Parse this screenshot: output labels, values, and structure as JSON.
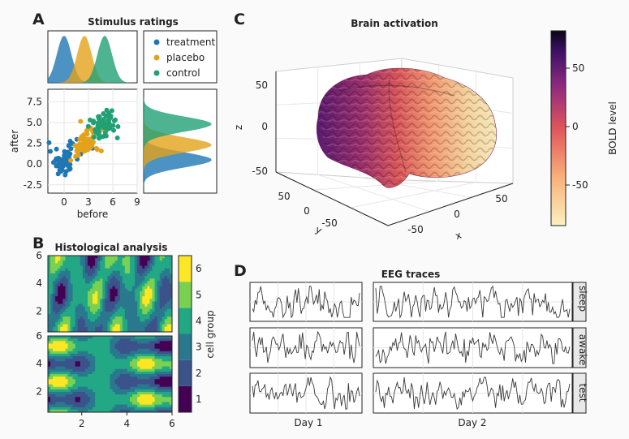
{
  "panels": {
    "A": {
      "letter": "A",
      "chart_data": {
        "type": "scatter",
        "title": "Stimulus ratings",
        "xlabel": "before",
        "ylabel": "after",
        "xlim": [
          -2,
          9
        ],
        "ylim": [
          -3.5,
          9
        ],
        "xticks": [
          0,
          3,
          6,
          9
        ],
        "yticks": [
          -2.5,
          0.0,
          2.5,
          5.0,
          7.5
        ],
        "ytick_labels": [
          "-2.5",
          "0.0",
          "2.5",
          "5.0",
          "7.5"
        ],
        "legend_position": "top-right",
        "series": [
          {
            "name": "treatment",
            "color": "#1f77b4",
            "x_center": 0,
            "y_center": 0.5,
            "x_spread": 0.9,
            "y_spread": 0.9
          },
          {
            "name": "placebo",
            "color": "#e3a21a",
            "x_center": 2.5,
            "y_center": 2.3,
            "x_spread": 0.9,
            "y_spread": 0.9
          },
          {
            "name": "control",
            "color": "#22a075",
            "x_center": 5,
            "y_center": 4.8,
            "x_spread": 0.9,
            "y_spread": 0.9
          }
        ]
      }
    },
    "B": {
      "letter": "B",
      "chart_data": {
        "type": "heatmap",
        "title": "Histological analysis",
        "xticks": [
          2,
          4,
          6
        ],
        "yticks": [
          2,
          4,
          6
        ],
        "colorbar_label": "cell group",
        "colorbar_ticks": [
          "1",
          "2",
          "3",
          "4",
          "5",
          "6"
        ],
        "levels": [
          "#440154",
          "#3b528b",
          "#2a788e",
          "#22a884",
          "#7ad151",
          "#fde725"
        ]
      }
    },
    "C": {
      "letter": "C",
      "chart_data": {
        "type": "surface",
        "title": "Brain activation",
        "xlabel": "x",
        "ylabel": "y",
        "zlabel": "z",
        "xticks": [
          "-50",
          "0",
          "50"
        ],
        "yticks": [
          "50",
          "0",
          "-50"
        ],
        "zticks": [
          "50",
          "0",
          "-50"
        ],
        "colorbar_label": "BOLD level",
        "colorbar_ticks": [
          "50",
          "0",
          "-50"
        ]
      }
    },
    "D": {
      "letter": "D",
      "chart_data": {
        "type": "line",
        "title": "EEG traces",
        "columns": [
          "Day 1",
          "Day 2"
        ],
        "rows": [
          "sleep",
          "awake",
          "test"
        ]
      }
    }
  },
  "colors": {
    "trace": "#3a3a3a",
    "frame": "#222222"
  }
}
